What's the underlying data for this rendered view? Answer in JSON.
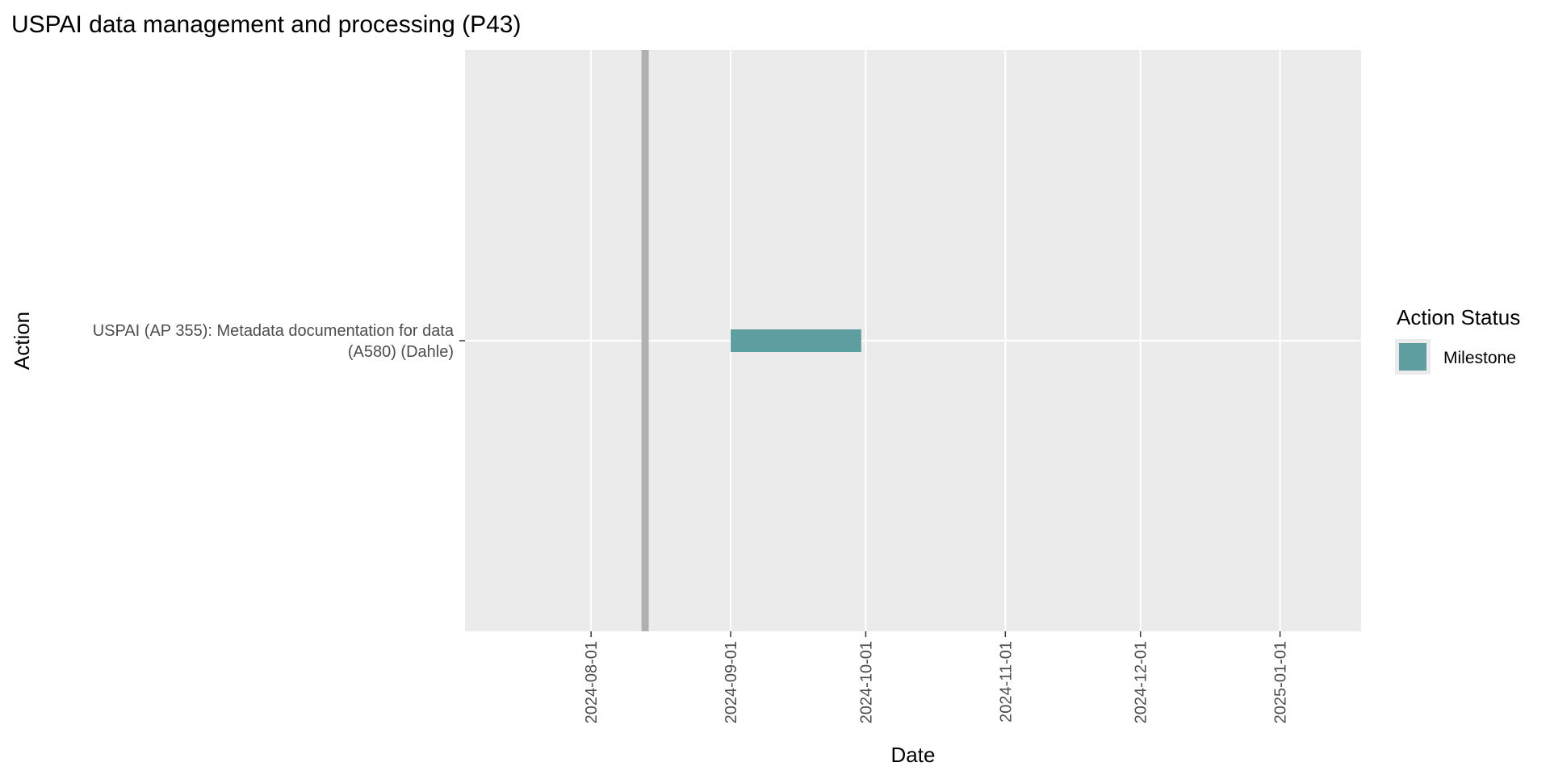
{
  "chart_data": {
    "type": "gantt",
    "title": "USPAI data management and processing (P43)",
    "xlabel": "Date",
    "ylabel": "Action",
    "x_axis": {
      "type": "date",
      "range": [
        "2024-07-04",
        "2025-01-19"
      ],
      "ticks": [
        "2024-08-01",
        "2024-09-01",
        "2024-10-01",
        "2024-11-01",
        "2024-12-01",
        "2025-01-01"
      ]
    },
    "today_line": "2024-08-13",
    "categories": [
      "USPAI (AP 355): Metadata documentation for data\n(A580) (Dahle)"
    ],
    "tasks": [
      {
        "category_index": 0,
        "start": "2024-09-01",
        "end": "2024-09-30",
        "status": "Milestone"
      }
    ],
    "legend": {
      "title": "Action Status",
      "position": "right",
      "items": [
        {
          "label": "Milestone",
          "color": "#5f9ea0"
        }
      ]
    },
    "colors": {
      "panel": "#ebebeb",
      "grid": "#ffffff",
      "today_line": "#b0b0b0",
      "tick": "#333333"
    },
    "grid": true
  }
}
